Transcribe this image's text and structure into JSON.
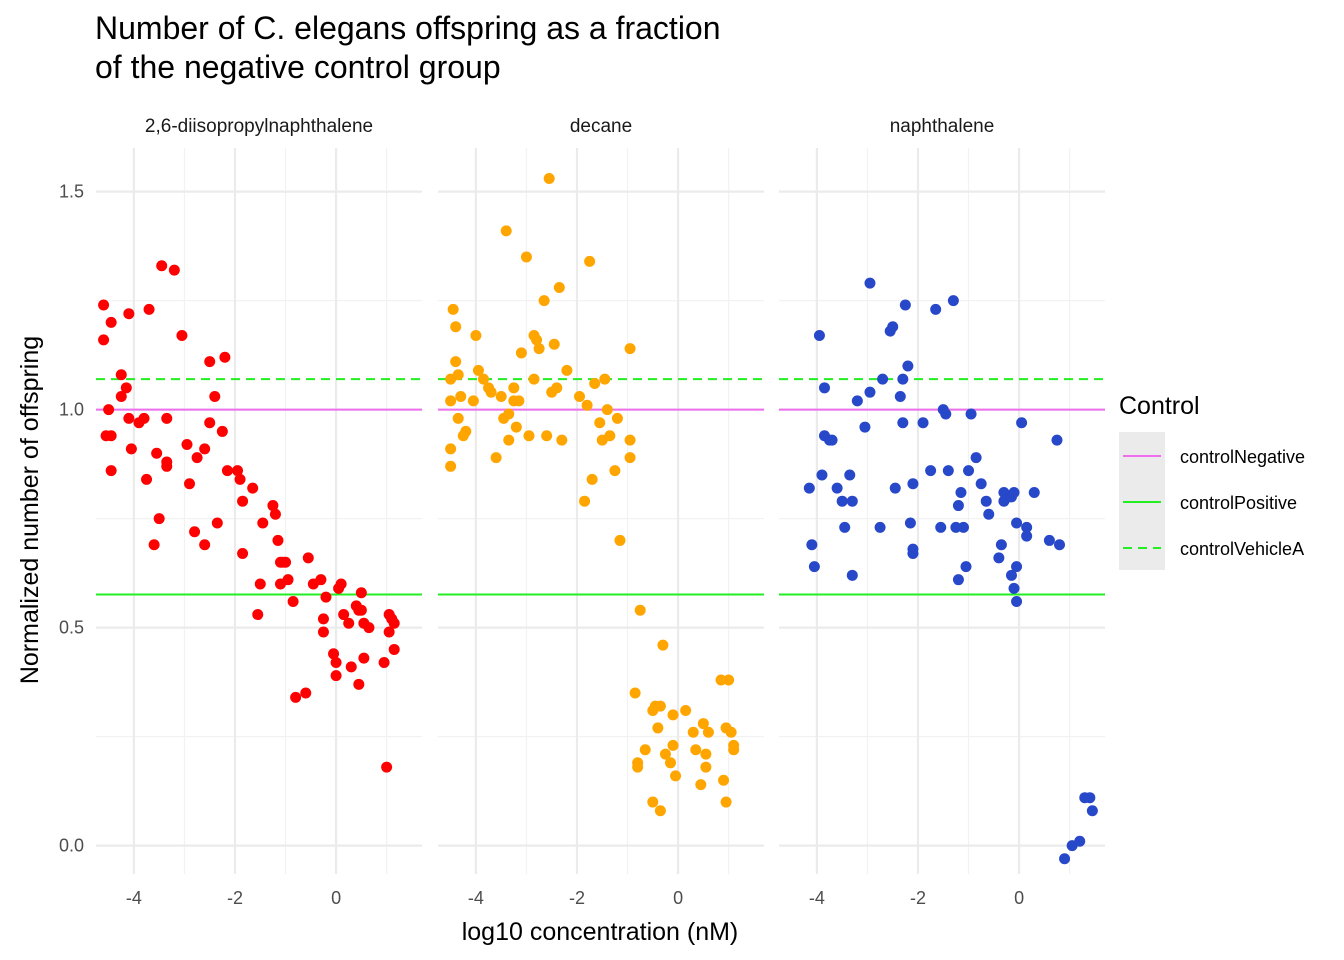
{
  "chart_data": {
    "type": "scatter",
    "title_lines": [
      "Number of C. elegans offspring as a fraction",
      "of the negative control group"
    ],
    "xlabel": "log10 concentration (nM)",
    "ylabel": "Normalized number of offspring",
    "xlim": [
      -4.75,
      1.7
    ],
    "ylim": [
      -0.065,
      1.6
    ],
    "x_ticks": [
      -4,
      -2,
      0
    ],
    "y_ticks": [
      0.0,
      0.5,
      1.0,
      1.5
    ],
    "y_tick_labels": [
      "0.0",
      "0.5",
      "1.0",
      "1.5"
    ],
    "x_tick_labels": [
      "-4",
      "-2",
      "0"
    ],
    "grid": true,
    "reference_lines": [
      {
        "name": "controlNegative",
        "y": 1.0,
        "color": "#EE6EEE",
        "dash": "solid"
      },
      {
        "name": "controlPositive",
        "y": 0.576,
        "color": "#22EE22",
        "dash": "solid"
      },
      {
        "name": "controlVehicleA",
        "y": 1.07,
        "color": "#22EE22",
        "dash": "dashed"
      }
    ],
    "legend": {
      "title": "Control",
      "position": "right",
      "entries": [
        "controlNegative",
        "controlPositive",
        "controlVehicleA"
      ]
    },
    "panels": [
      {
        "label": "2,6-diisopropylnaphthalene",
        "color": "#FF0000",
        "points": [
          [
            -4.6,
            1.24
          ],
          [
            -4.6,
            1.16
          ],
          [
            -4.45,
            1.2
          ],
          [
            -4.5,
            1.0
          ],
          [
            -4.55,
            0.94
          ],
          [
            -4.45,
            0.94
          ],
          [
            -4.45,
            0.86
          ],
          [
            -4.25,
            1.08
          ],
          [
            -4.25,
            1.03
          ],
          [
            -4.15,
            1.05
          ],
          [
            -4.1,
            0.98
          ],
          [
            -4.05,
            0.91
          ],
          [
            -4.1,
            1.22
          ],
          [
            -3.9,
            0.97
          ],
          [
            -3.8,
            0.98
          ],
          [
            -3.75,
            0.84
          ],
          [
            -3.7,
            1.23
          ],
          [
            -3.6,
            0.69
          ],
          [
            -3.55,
            0.9
          ],
          [
            -3.5,
            0.75
          ],
          [
            -3.45,
            1.33
          ],
          [
            -3.35,
            0.98
          ],
          [
            -3.35,
            0.88
          ],
          [
            -3.35,
            0.87
          ],
          [
            -3.2,
            1.32
          ],
          [
            -3.05,
            1.17
          ],
          [
            -2.95,
            0.92
          ],
          [
            -2.9,
            0.83
          ],
          [
            -2.8,
            0.72
          ],
          [
            -2.75,
            0.89
          ],
          [
            -2.6,
            0.91
          ],
          [
            -2.6,
            0.69
          ],
          [
            -2.5,
            1.11
          ],
          [
            -2.5,
            0.97
          ],
          [
            -2.4,
            1.03
          ],
          [
            -2.35,
            0.74
          ],
          [
            -2.25,
            0.95
          ],
          [
            -2.2,
            1.12
          ],
          [
            -2.15,
            0.86
          ],
          [
            -1.95,
            0.86
          ],
          [
            -1.9,
            0.84
          ],
          [
            -1.85,
            0.79
          ],
          [
            -1.85,
            0.67
          ],
          [
            -1.65,
            0.82
          ],
          [
            -1.55,
            0.53
          ],
          [
            -1.5,
            0.6
          ],
          [
            -1.45,
            0.74
          ],
          [
            -1.25,
            0.78
          ],
          [
            -1.2,
            0.76
          ],
          [
            -1.15,
            0.7
          ],
          [
            -1.1,
            0.65
          ],
          [
            -1.1,
            0.6
          ],
          [
            -1.05,
            0.65
          ],
          [
            -1.0,
            0.65
          ],
          [
            -0.95,
            0.61
          ],
          [
            -0.85,
            0.56
          ],
          [
            -0.8,
            0.34
          ],
          [
            -0.6,
            0.35
          ],
          [
            -0.55,
            0.66
          ],
          [
            -0.45,
            0.6
          ],
          [
            -0.3,
            0.61
          ],
          [
            -0.25,
            0.49
          ],
          [
            -0.25,
            0.52
          ],
          [
            -0.2,
            0.57
          ],
          [
            -0.05,
            0.44
          ],
          [
            0.0,
            0.39
          ],
          [
            0.0,
            0.42
          ],
          [
            0.05,
            0.59
          ],
          [
            0.1,
            0.6
          ],
          [
            0.15,
            0.53
          ],
          [
            0.25,
            0.51
          ],
          [
            0.3,
            0.41
          ],
          [
            0.4,
            0.55
          ],
          [
            0.45,
            0.37
          ],
          [
            0.45,
            0.54
          ],
          [
            0.5,
            0.58
          ],
          [
            0.5,
            0.54
          ],
          [
            0.55,
            0.43
          ],
          [
            0.55,
            0.51
          ],
          [
            0.65,
            0.5
          ],
          [
            0.95,
            0.42
          ],
          [
            1.05,
            0.49
          ],
          [
            1.05,
            0.53
          ],
          [
            1.0,
            0.18
          ],
          [
            1.1,
            0.52
          ],
          [
            1.15,
            0.51
          ],
          [
            1.15,
            0.45
          ]
        ]
      },
      {
        "label": "decane",
        "color": "#FFA500",
        "points": [
          [
            -4.5,
            1.07
          ],
          [
            -4.5,
            1.02
          ],
          [
            -4.5,
            0.91
          ],
          [
            -4.5,
            0.87
          ],
          [
            -4.45,
            1.23
          ],
          [
            -4.4,
            1.19
          ],
          [
            -4.4,
            1.11
          ],
          [
            -4.35,
            1.08
          ],
          [
            -4.35,
            0.98
          ],
          [
            -4.3,
            1.03
          ],
          [
            -4.25,
            0.94
          ],
          [
            -4.2,
            0.95
          ],
          [
            -4.05,
            1.02
          ],
          [
            -4.0,
            1.17
          ],
          [
            -3.95,
            1.09
          ],
          [
            -3.85,
            1.07
          ],
          [
            -3.75,
            1.05
          ],
          [
            -3.7,
            1.04
          ],
          [
            -3.6,
            0.89
          ],
          [
            -3.5,
            1.03
          ],
          [
            -3.45,
            0.98
          ],
          [
            -3.4,
            1.41
          ],
          [
            -3.35,
            0.93
          ],
          [
            -3.35,
            0.99
          ],
          [
            -3.25,
            1.05
          ],
          [
            -3.25,
            1.02
          ],
          [
            -3.2,
            0.96
          ],
          [
            -3.15,
            1.02
          ],
          [
            -3.1,
            1.13
          ],
          [
            -3.0,
            1.35
          ],
          [
            -2.95,
            0.94
          ],
          [
            -2.85,
            1.17
          ],
          [
            -2.85,
            1.07
          ],
          [
            -2.8,
            1.16
          ],
          [
            -2.75,
            1.14
          ],
          [
            -2.65,
            1.25
          ],
          [
            -2.6,
            0.94
          ],
          [
            -2.55,
            1.53
          ],
          [
            -2.5,
            1.04
          ],
          [
            -2.45,
            1.15
          ],
          [
            -2.4,
            1.05
          ],
          [
            -2.35,
            1.28
          ],
          [
            -2.3,
            0.93
          ],
          [
            -2.2,
            1.09
          ],
          [
            -1.95,
            1.03
          ],
          [
            -1.85,
            0.79
          ],
          [
            -1.8,
            1.01
          ],
          [
            -1.75,
            1.34
          ],
          [
            -1.7,
            0.84
          ],
          [
            -1.65,
            1.06
          ],
          [
            -1.55,
            0.97
          ],
          [
            -1.5,
            0.93
          ],
          [
            -1.45,
            1.07
          ],
          [
            -1.4,
            1.0
          ],
          [
            -1.35,
            0.94
          ],
          [
            -1.25,
            0.86
          ],
          [
            -1.2,
            0.98
          ],
          [
            -1.15,
            0.7
          ],
          [
            -0.95,
            1.14
          ],
          [
            -0.95,
            0.93
          ],
          [
            -0.95,
            0.89
          ],
          [
            -0.75,
            0.54
          ],
          [
            -0.85,
            0.35
          ],
          [
            -0.8,
            0.19
          ],
          [
            -0.8,
            0.18
          ],
          [
            -0.65,
            0.22
          ],
          [
            -0.5,
            0.1
          ],
          [
            -0.5,
            0.31
          ],
          [
            -0.45,
            0.32
          ],
          [
            -0.4,
            0.27
          ],
          [
            -0.35,
            0.08
          ],
          [
            -0.35,
            0.32
          ],
          [
            -0.3,
            0.46
          ],
          [
            -0.25,
            0.21
          ],
          [
            -0.15,
            0.19
          ],
          [
            -0.1,
            0.3
          ],
          [
            -0.1,
            0.23
          ],
          [
            -0.05,
            0.16
          ],
          [
            0.15,
            0.31
          ],
          [
            0.3,
            0.26
          ],
          [
            0.35,
            0.22
          ],
          [
            0.45,
            0.14
          ],
          [
            0.5,
            0.28
          ],
          [
            0.55,
            0.21
          ],
          [
            0.55,
            0.18
          ],
          [
            0.6,
            0.26
          ],
          [
            0.85,
            0.38
          ],
          [
            0.9,
            0.15
          ],
          [
            0.95,
            0.1
          ],
          [
            0.95,
            0.27
          ],
          [
            1.0,
            0.38
          ],
          [
            1.05,
            0.26
          ],
          [
            1.1,
            0.23
          ],
          [
            1.1,
            0.22
          ]
        ]
      },
      {
        "label": "naphthalene",
        "color": "#2748C8",
        "points": [
          [
            -4.15,
            0.82
          ],
          [
            -4.1,
            0.69
          ],
          [
            -4.05,
            0.64
          ],
          [
            -3.95,
            1.17
          ],
          [
            -3.9,
            0.85
          ],
          [
            -3.85,
            1.05
          ],
          [
            -3.85,
            0.94
          ],
          [
            -3.75,
            0.93
          ],
          [
            -3.7,
            0.93
          ],
          [
            -3.6,
            0.82
          ],
          [
            -3.5,
            0.79
          ],
          [
            -3.45,
            0.73
          ],
          [
            -3.35,
            0.85
          ],
          [
            -3.3,
            0.79
          ],
          [
            -3.3,
            0.62
          ],
          [
            -3.2,
            1.02
          ],
          [
            -3.05,
            0.96
          ],
          [
            -2.95,
            1.29
          ],
          [
            -2.95,
            1.04
          ],
          [
            -2.75,
            0.73
          ],
          [
            -2.7,
            1.07
          ],
          [
            -2.55,
            1.18
          ],
          [
            -2.5,
            1.19
          ],
          [
            -2.45,
            0.82
          ],
          [
            -2.35,
            1.03
          ],
          [
            -2.3,
            1.07
          ],
          [
            -2.3,
            0.97
          ],
          [
            -2.25,
            1.24
          ],
          [
            -2.2,
            1.1
          ],
          [
            -2.15,
            0.74
          ],
          [
            -2.1,
            0.68
          ],
          [
            -2.1,
            0.83
          ],
          [
            -2.1,
            0.67
          ],
          [
            -1.9,
            0.97
          ],
          [
            -1.75,
            0.86
          ],
          [
            -1.65,
            1.23
          ],
          [
            -1.55,
            0.73
          ],
          [
            -1.5,
            1.0
          ],
          [
            -1.45,
            0.99
          ],
          [
            -1.4,
            0.86
          ],
          [
            -1.3,
            1.25
          ],
          [
            -1.25,
            0.73
          ],
          [
            -1.2,
            0.78
          ],
          [
            -1.2,
            0.61
          ],
          [
            -1.15,
            0.81
          ],
          [
            -1.1,
            0.73
          ],
          [
            -1.05,
            0.64
          ],
          [
            -1.0,
            0.86
          ],
          [
            -0.95,
            0.99
          ],
          [
            -0.85,
            0.89
          ],
          [
            -0.75,
            0.83
          ],
          [
            -0.65,
            0.79
          ],
          [
            -0.6,
            0.76
          ],
          [
            -0.4,
            0.66
          ],
          [
            -0.35,
            0.69
          ],
          [
            -0.3,
            0.81
          ],
          [
            -0.3,
            0.79
          ],
          [
            -0.2,
            0.8
          ],
          [
            -0.15,
            0.62
          ],
          [
            -0.15,
            0.8
          ],
          [
            -0.1,
            0.81
          ],
          [
            -0.1,
            0.59
          ],
          [
            -0.05,
            0.74
          ],
          [
            -0.05,
            0.64
          ],
          [
            -0.05,
            0.56
          ],
          [
            0.05,
            0.97
          ],
          [
            0.15,
            0.73
          ],
          [
            0.15,
            0.71
          ],
          [
            0.3,
            0.81
          ],
          [
            0.6,
            0.7
          ],
          [
            0.75,
            0.93
          ],
          [
            0.8,
            0.69
          ],
          [
            0.9,
            -0.03
          ],
          [
            1.05,
            0.0
          ],
          [
            1.2,
            0.01
          ],
          [
            1.3,
            0.11
          ],
          [
            1.4,
            0.11
          ],
          [
            1.45,
            0.08
          ]
        ]
      }
    ]
  }
}
